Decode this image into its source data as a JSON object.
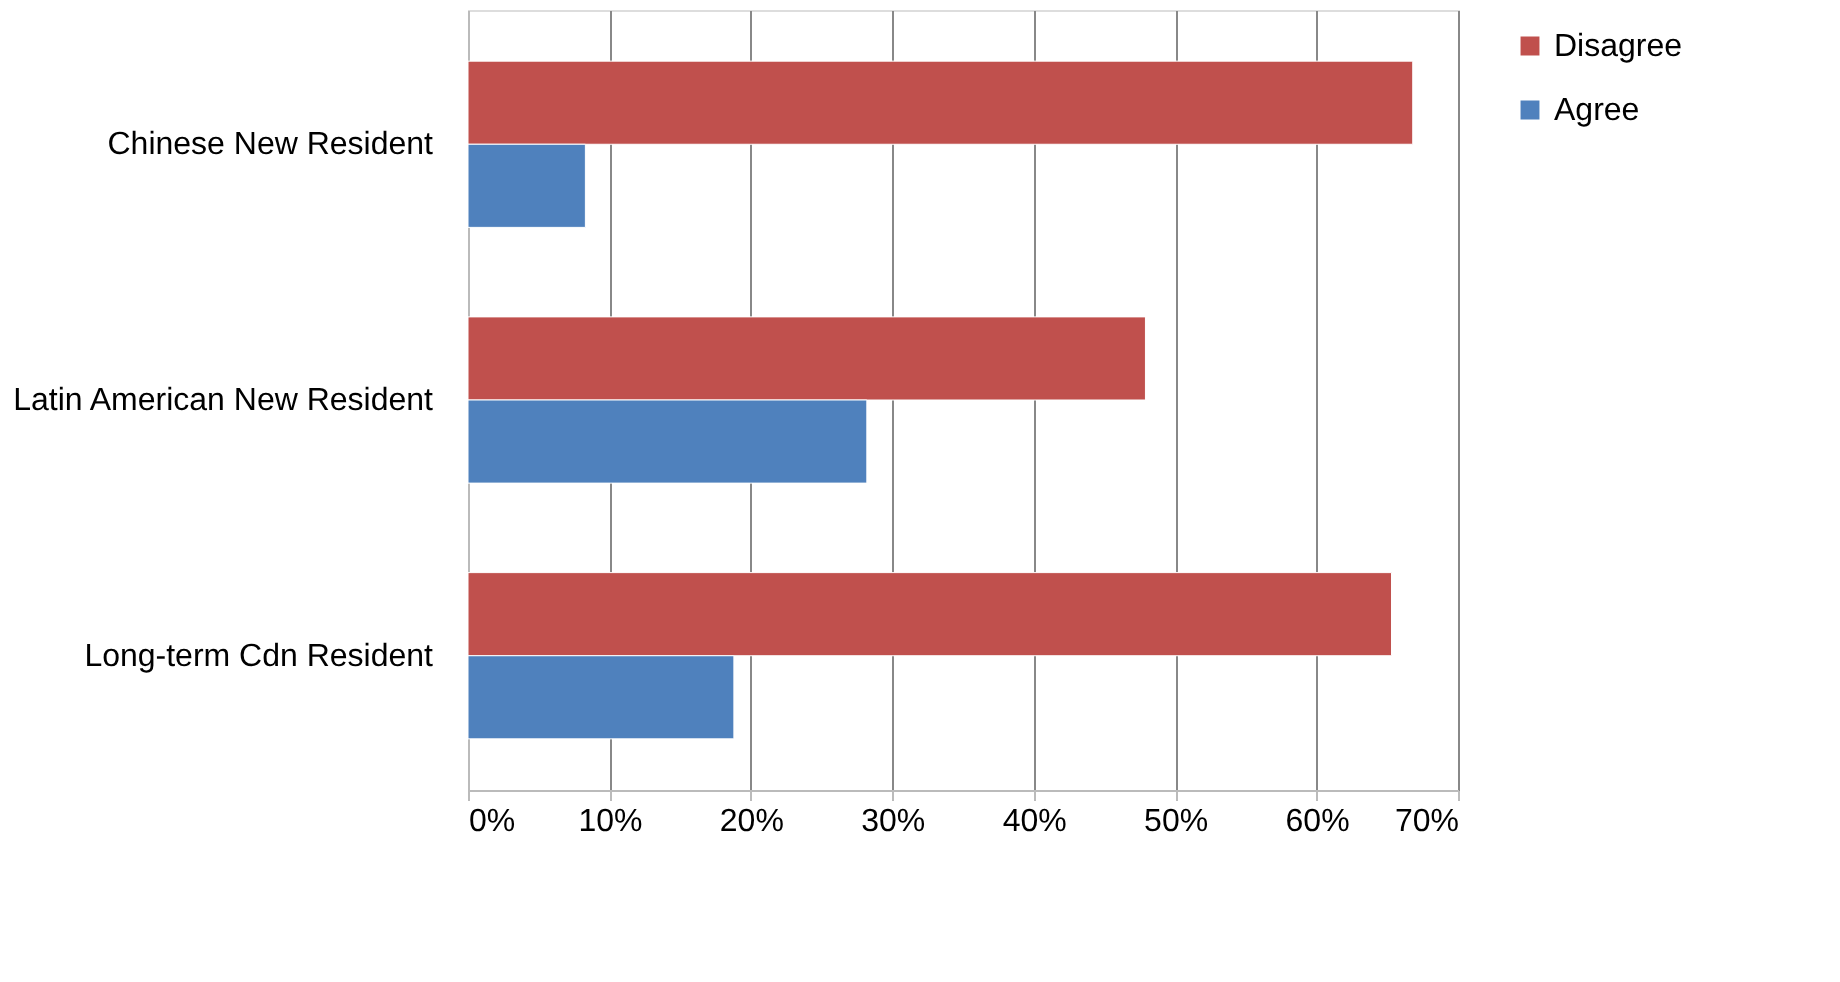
{
  "chart_data": {
    "type": "bar",
    "orientation": "horizontal",
    "categories": [
      "Chinese New Resident",
      "Latin American New Resident",
      "Long-term Cdn Resident"
    ],
    "series": [
      {
        "name": "Disagree",
        "color": "#c0504d",
        "values": [
          66.8,
          47.9,
          65.3
        ]
      },
      {
        "name": "Agree",
        "color": "#4f81bd",
        "values": [
          8.3,
          28.2,
          18.8
        ]
      }
    ],
    "xlim": [
      0,
      70
    ],
    "xticks": [
      {
        "value": 0,
        "label": "0%"
      },
      {
        "value": 10,
        "label": "10%"
      },
      {
        "value": 20,
        "label": "20%"
      },
      {
        "value": 30,
        "label": "30%"
      },
      {
        "value": 40,
        "label": "40%"
      },
      {
        "value": 50,
        "label": "50%"
      },
      {
        "value": 60,
        "label": "60%"
      },
      {
        "value": 70,
        "label": "70%"
      }
    ],
    "grid": "x",
    "legend": "right"
  }
}
